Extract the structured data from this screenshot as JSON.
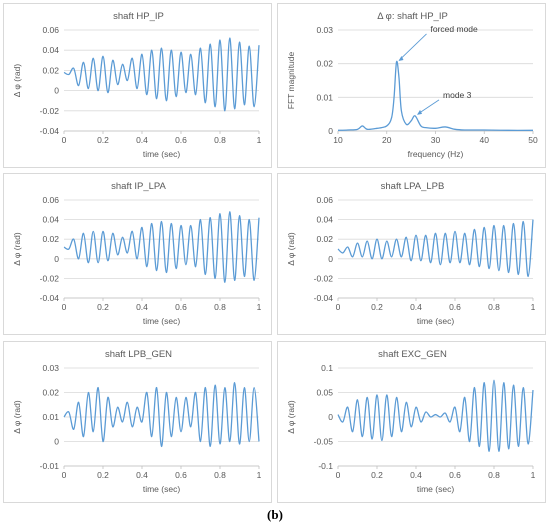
{
  "caption": "(b)",
  "line_color": "#5b9bd5",
  "chart_data": [
    {
      "id": "hp_ip",
      "type": "line",
      "title": "shaft HP_IP",
      "xlabel": "time (sec)",
      "ylabel": "Δ φ (rad)",
      "xlim": [
        0,
        1
      ],
      "ylim": [
        -0.04,
        0.06
      ],
      "xticks": [
        "0",
        "0.2",
        "0.4",
        "0.6",
        "0.8",
        "1"
      ],
      "yticks": [
        "-0.04",
        "-0.02",
        "0",
        "0.02",
        "0.04",
        "0.06"
      ],
      "grid": true,
      "series": [
        {
          "x": [
            0,
            0.025,
            0.05,
            0.075,
            0.1,
            0.125,
            0.15,
            0.175,
            0.2,
            0.225,
            0.25,
            0.275,
            0.3,
            0.325,
            0.35,
            0.375,
            0.4,
            0.425,
            0.45,
            0.475,
            0.5,
            0.525,
            0.55,
            0.575,
            0.6,
            0.625,
            0.65,
            0.675,
            0.7,
            0.725,
            0.75,
            0.775,
            0.8,
            0.825,
            0.85,
            0.875,
            0.9,
            0.925,
            0.95,
            0.975,
            1.0
          ],
          "values": [
            0.018,
            0.016,
            0.022,
            0.005,
            0.028,
            0.002,
            0.032,
            0.0,
            0.034,
            -0.002,
            0.03,
            0.006,
            0.026,
            0.01,
            0.032,
            0.002,
            0.036,
            -0.004,
            0.04,
            -0.008,
            0.042,
            -0.01,
            0.04,
            -0.006,
            0.038,
            -0.002,
            0.036,
            -0.004,
            0.042,
            -0.012,
            0.046,
            -0.016,
            0.05,
            -0.02,
            0.052,
            -0.018,
            0.048,
            -0.014,
            0.044,
            -0.016,
            0.045
          ]
        }
      ]
    },
    {
      "id": "fft",
      "type": "line",
      "title": "Δ φ: shaft HP_IP",
      "xlabel": "frequency (Hz)",
      "ylabel": "FFT magnitude",
      "xlim": [
        10,
        50
      ],
      "ylim": [
        0,
        0.03
      ],
      "xticks": [
        "10",
        "20",
        "30",
        "40",
        "50"
      ],
      "yticks": [
        "0",
        "0.01",
        "0.02",
        "0.03"
      ],
      "grid": true,
      "series": [
        {
          "x": [
            10,
            12,
            14,
            15,
            16,
            18,
            20,
            21,
            21.5,
            22,
            22.5,
            23,
            24,
            25,
            25.8,
            27,
            28,
            30,
            32,
            34,
            36,
            40,
            45,
            50
          ],
          "values": [
            0.0002,
            0.0003,
            0.0005,
            0.0015,
            0.0005,
            0.0008,
            0.0015,
            0.004,
            0.01,
            0.0205,
            0.016,
            0.006,
            0.002,
            0.003,
            0.0045,
            0.0015,
            0.001,
            0.0008,
            0.0012,
            0.0005,
            0.0003,
            0.0003,
            0.0002,
            0.0002
          ]
        }
      ],
      "annotations": [
        {
          "text": "forced mode",
          "x": 22,
          "y": 0.0205
        },
        {
          "text": "mode 3",
          "x": 25.8,
          "y": 0.0045
        }
      ]
    },
    {
      "id": "ip_lpa",
      "type": "line",
      "title": "shaft IP_LPA",
      "xlabel": "time (sec)",
      "ylabel": "Δ φ (rad)",
      "xlim": [
        0,
        1
      ],
      "ylim": [
        -0.04,
        0.06
      ],
      "xticks": [
        "0",
        "0.2",
        "0.4",
        "0.6",
        "0.8",
        "1"
      ],
      "yticks": [
        "-0.04",
        "-0.02",
        "0",
        "0.02",
        "0.04",
        "0.06"
      ],
      "grid": true,
      "series": [
        {
          "x": [
            0,
            0.025,
            0.05,
            0.075,
            0.1,
            0.125,
            0.15,
            0.175,
            0.2,
            0.225,
            0.25,
            0.275,
            0.3,
            0.325,
            0.35,
            0.375,
            0.4,
            0.425,
            0.45,
            0.475,
            0.5,
            0.525,
            0.55,
            0.575,
            0.6,
            0.625,
            0.65,
            0.675,
            0.7,
            0.725,
            0.75,
            0.775,
            0.8,
            0.825,
            0.85,
            0.875,
            0.9,
            0.925,
            0.95,
            0.975,
            1.0
          ],
          "values": [
            0.012,
            0.01,
            0.02,
            0.0,
            0.026,
            -0.004,
            0.028,
            -0.004,
            0.028,
            -0.002,
            0.026,
            0.004,
            0.022,
            0.006,
            0.028,
            0.0,
            0.032,
            -0.008,
            0.036,
            -0.012,
            0.038,
            -0.014,
            0.036,
            -0.01,
            0.034,
            -0.006,
            0.034,
            -0.008,
            0.04,
            -0.016,
            0.042,
            -0.02,
            0.046,
            -0.024,
            0.048,
            -0.022,
            0.044,
            -0.018,
            0.04,
            -0.022,
            0.042
          ]
        }
      ]
    },
    {
      "id": "lpa_lpb",
      "type": "line",
      "title": "shaft LPA_LPB",
      "xlabel": "time (sec)",
      "ylabel": "Δ φ (rad)",
      "xlim": [
        0,
        1
      ],
      "ylim": [
        -0.04,
        0.06
      ],
      "xticks": [
        "0",
        "0.2",
        "0.4",
        "0.6",
        "0.8",
        "1"
      ],
      "yticks": [
        "-0.04",
        "-0.02",
        "0",
        "0.02",
        "0.04",
        "0.06"
      ],
      "grid": true,
      "series": [
        {
          "x": [
            0,
            0.025,
            0.05,
            0.075,
            0.1,
            0.125,
            0.15,
            0.175,
            0.2,
            0.225,
            0.25,
            0.275,
            0.3,
            0.325,
            0.35,
            0.375,
            0.4,
            0.425,
            0.45,
            0.475,
            0.5,
            0.525,
            0.55,
            0.575,
            0.6,
            0.625,
            0.65,
            0.675,
            0.7,
            0.725,
            0.75,
            0.775,
            0.8,
            0.825,
            0.85,
            0.875,
            0.9,
            0.925,
            0.95,
            0.975,
            1.0
          ],
          "values": [
            0.01,
            0.006,
            0.012,
            0.002,
            0.016,
            0.002,
            0.018,
            0.0,
            0.02,
            0.0,
            0.018,
            0.002,
            0.02,
            0.002,
            0.022,
            -0.002,
            0.024,
            -0.002,
            0.024,
            -0.004,
            0.026,
            -0.006,
            0.026,
            -0.004,
            0.028,
            -0.004,
            0.026,
            -0.006,
            0.03,
            -0.008,
            0.032,
            -0.01,
            0.034,
            -0.012,
            0.034,
            -0.014,
            0.036,
            -0.016,
            0.038,
            -0.018,
            0.04
          ]
        }
      ]
    },
    {
      "id": "lpb_gen",
      "type": "line",
      "title": "shaft LPB_GEN",
      "xlabel": "time (sec)",
      "ylabel": "Δ φ (rad)",
      "xlim": [
        0,
        1
      ],
      "ylim": [
        -0.01,
        0.03
      ],
      "xticks": [
        "0",
        "0.2",
        "0.4",
        "0.6",
        "0.8",
        "1"
      ],
      "yticks": [
        "-0.01",
        "0",
        "0.01",
        "0.02",
        "0.03"
      ],
      "grid": true,
      "series": [
        {
          "x": [
            0,
            0.025,
            0.05,
            0.075,
            0.1,
            0.125,
            0.15,
            0.175,
            0.2,
            0.225,
            0.25,
            0.275,
            0.3,
            0.325,
            0.35,
            0.375,
            0.4,
            0.425,
            0.45,
            0.475,
            0.5,
            0.525,
            0.55,
            0.575,
            0.6,
            0.625,
            0.65,
            0.675,
            0.7,
            0.725,
            0.75,
            0.775,
            0.8,
            0.825,
            0.85,
            0.875,
            0.9,
            0.925,
            0.95,
            0.975,
            1.0
          ],
          "values": [
            0.01,
            0.012,
            0.005,
            0.016,
            0.002,
            0.02,
            0.004,
            0.022,
            0.0,
            0.018,
            0.006,
            0.014,
            0.008,
            0.016,
            0.006,
            0.014,
            0.008,
            0.02,
            0.002,
            0.022,
            -0.002,
            0.02,
            0.002,
            0.018,
            0.004,
            0.018,
            0.006,
            0.02,
            0.0,
            0.022,
            -0.002,
            0.023,
            -0.001,
            0.022,
            0.0,
            0.024,
            -0.001,
            0.022,
            0.0,
            0.022,
            0.0
          ]
        }
      ]
    },
    {
      "id": "exc_gen",
      "type": "line",
      "title": "shaft EXC_GEN",
      "xlabel": "time (sec)",
      "ylabel": "Δ φ (rad)",
      "xlim": [
        0,
        1
      ],
      "ylim": [
        -0.1,
        0.1
      ],
      "xticks": [
        "0",
        "0.2",
        "0.4",
        "0.6",
        "0.8",
        "1"
      ],
      "yticks": [
        "-0.1",
        "-0.05",
        "0",
        "0.05",
        "0.1"
      ],
      "grid": true,
      "series": [
        {
          "x": [
            0,
            0.025,
            0.05,
            0.075,
            0.1,
            0.125,
            0.15,
            0.175,
            0.2,
            0.225,
            0.25,
            0.275,
            0.3,
            0.325,
            0.35,
            0.375,
            0.4,
            0.425,
            0.45,
            0.475,
            0.5,
            0.525,
            0.55,
            0.575,
            0.6,
            0.625,
            0.65,
            0.675,
            0.7,
            0.725,
            0.75,
            0.775,
            0.8,
            0.825,
            0.85,
            0.875,
            0.9,
            0.925,
            0.95,
            0.975,
            1.0
          ],
          "values": [
            0.005,
            -0.01,
            0.02,
            -0.03,
            0.035,
            -0.04,
            0.04,
            -0.045,
            0.045,
            -0.048,
            0.045,
            -0.04,
            0.04,
            -0.03,
            0.03,
            -0.02,
            0.02,
            -0.01,
            0.01,
            0.0,
            0.005,
            0.0,
            0.008,
            -0.01,
            0.02,
            -0.03,
            0.04,
            -0.05,
            0.06,
            -0.06,
            0.07,
            -0.07,
            0.075,
            -0.07,
            0.07,
            -0.065,
            0.065,
            -0.06,
            0.06,
            -0.055,
            0.055
          ]
        }
      ]
    }
  ]
}
